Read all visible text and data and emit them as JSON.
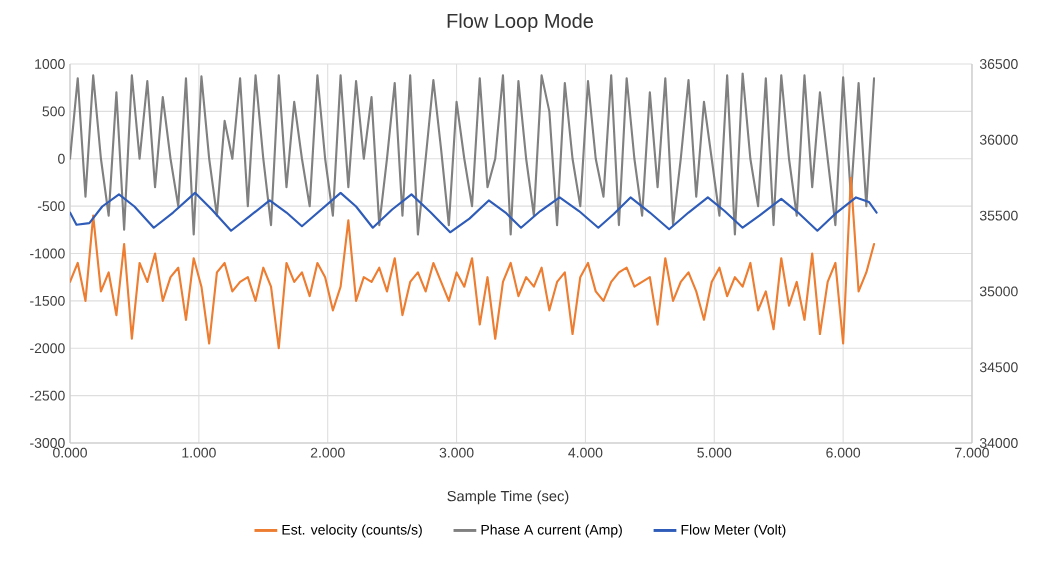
{
  "chart_data": {
    "type": "line",
    "title": "Flow Loop Mode",
    "xlabel": "Sample Time (sec)",
    "x": [
      0.0,
      0.06,
      0.12,
      0.18,
      0.24,
      0.3,
      0.36,
      0.42,
      0.48,
      0.54,
      0.6,
      0.66,
      0.72,
      0.78,
      0.84,
      0.9,
      0.96,
      1.02,
      1.08,
      1.14,
      1.2,
      1.26,
      1.32,
      1.38,
      1.44,
      1.5,
      1.56,
      1.62,
      1.68,
      1.74,
      1.8,
      1.86,
      1.92,
      1.98,
      2.04,
      2.1,
      2.16,
      2.22,
      2.28,
      2.34,
      2.4,
      2.46,
      2.52,
      2.58,
      2.64,
      2.7,
      2.76,
      2.82,
      2.88,
      2.94,
      3.0,
      3.06,
      3.12,
      3.18,
      3.24,
      3.3,
      3.36,
      3.42,
      3.48,
      3.54,
      3.6,
      3.66,
      3.72,
      3.78,
      3.84,
      3.9,
      3.96,
      4.02,
      4.08,
      4.14,
      4.2,
      4.26,
      4.32,
      4.38,
      4.44,
      4.5,
      4.56,
      4.62,
      4.68,
      4.74,
      4.8,
      4.86,
      4.92,
      4.98,
      5.04,
      5.1,
      5.16,
      5.22,
      5.28,
      5.34,
      5.4,
      5.46,
      5.52,
      5.58,
      5.64,
      5.7,
      5.76,
      5.82,
      5.88,
      5.94,
      6.0,
      6.06,
      6.12,
      6.18,
      6.24
    ],
    "series": [
      {
        "name": "Est. velocity  (counts/s)",
        "color": "#ed7d31",
        "values": [
          -1300,
          -1100,
          -1500,
          -600,
          -1400,
          -1200,
          -1650,
          -900,
          -1900,
          -1100,
          -1300,
          -1000,
          -1500,
          -1250,
          -1150,
          -1700,
          -1050,
          -1350,
          -1950,
          -1200,
          -1100,
          -1400,
          -1300,
          -1250,
          -1500,
          -1150,
          -1350,
          -2000,
          -1100,
          -1300,
          -1200,
          -1450,
          -1100,
          -1250,
          -1600,
          -1350,
          -650,
          -1500,
          -1250,
          -1300,
          -1150,
          -1400,
          -1050,
          -1650,
          -1300,
          -1200,
          -1400,
          -1100,
          -1300,
          -1500,
          -1200,
          -1350,
          -1050,
          -1750,
          -1250,
          -1900,
          -1300,
          -1100,
          -1450,
          -1250,
          -1350,
          -1150,
          -1600,
          -1300,
          -1200,
          -1850,
          -1250,
          -1100,
          -1400,
          -1500,
          -1300,
          -1200,
          -1150,
          -1350,
          -1300,
          -1250,
          -1750,
          -1050,
          -1500,
          -1300,
          -1200,
          -1400,
          -1700,
          -1300,
          -1150,
          -1450,
          -1250,
          -1350,
          -1100,
          -1600,
          -1400,
          -1800,
          -1050,
          -1550,
          -1300,
          -1700,
          -1000,
          -1850,
          -1300,
          -1100,
          -1950,
          -200,
          -1400,
          -1200,
          -900
        ]
      },
      {
        "name": "Phase A current (Amp)",
        "color": "#808080",
        "values": [
          0,
          850,
          -400,
          880,
          0,
          -600,
          700,
          -750,
          880,
          0,
          820,
          -300,
          650,
          0,
          -500,
          850,
          -800,
          870,
          0,
          -600,
          400,
          0,
          850,
          -500,
          880,
          0,
          -700,
          880,
          -300,
          600,
          0,
          -500,
          880,
          0,
          -600,
          880,
          -300,
          820,
          0,
          650,
          -700,
          0,
          800,
          -600,
          880,
          -800,
          0,
          830,
          100,
          -700,
          600,
          0,
          -500,
          850,
          -300,
          0,
          880,
          -800,
          820,
          0,
          -600,
          880,
          500,
          -700,
          800,
          0,
          -500,
          820,
          0,
          -400,
          880,
          -700,
          850,
          0,
          -600,
          700,
          -300,
          850,
          -700,
          0,
          830,
          -400,
          600,
          0,
          -600,
          880,
          -800,
          900,
          0,
          -500,
          850,
          -700,
          880,
          0,
          -600,
          880,
          -300,
          700,
          0,
          -700,
          860,
          -400,
          800,
          -500,
          850
        ]
      },
      {
        "name": "Flow Meter (Volt)",
        "color": "#2e5cb8",
        "axis": "y2",
        "x": [
          0.0,
          0.05,
          0.15,
          0.25,
          0.38,
          0.5,
          0.65,
          0.8,
          0.97,
          1.1,
          1.25,
          1.4,
          1.55,
          1.68,
          1.8,
          1.95,
          2.1,
          2.22,
          2.35,
          2.5,
          2.65,
          2.8,
          2.95,
          3.1,
          3.25,
          3.38,
          3.5,
          3.65,
          3.8,
          3.95,
          4.1,
          4.22,
          4.35,
          4.5,
          4.65,
          4.8,
          4.95,
          5.08,
          5.22,
          5.35,
          5.52,
          5.65,
          5.8,
          5.95,
          6.1,
          6.2,
          6.26
        ],
        "values": [
          35520,
          35440,
          35450,
          35560,
          35640,
          35560,
          35420,
          35520,
          35650,
          35540,
          35400,
          35500,
          35600,
          35520,
          35430,
          35540,
          35650,
          35560,
          35420,
          35540,
          35640,
          35520,
          35390,
          35480,
          35600,
          35520,
          35420,
          35530,
          35620,
          35530,
          35420,
          35510,
          35620,
          35520,
          35410,
          35520,
          35620,
          35530,
          35420,
          35500,
          35610,
          35520,
          35400,
          35520,
          35620,
          35590,
          35520
        ]
      }
    ],
    "xlim": [
      0,
      7
    ],
    "xticks": [
      {
        "value": 0,
        "label": "0.000"
      },
      {
        "value": 1,
        "label": "1.000"
      },
      {
        "value": 2,
        "label": "2.000"
      },
      {
        "value": 3,
        "label": "3.000"
      },
      {
        "value": 4,
        "label": "4.000"
      },
      {
        "value": 5,
        "label": "5.000"
      },
      {
        "value": 6,
        "label": "6.000"
      },
      {
        "value": 7,
        "label": "7.000"
      }
    ],
    "ylim": [
      -3000,
      1000
    ],
    "yticks": [
      -3000,
      -2500,
      -2000,
      -1500,
      -1000,
      -500,
      0,
      500,
      1000
    ],
    "y2lim": [
      34000,
      36500
    ],
    "y2ticks": [
      34000,
      34500,
      35000,
      35500,
      36000,
      36500
    ],
    "grid": true,
    "legend": "bottom",
    "marker": "none",
    "line_style": "solid"
  }
}
